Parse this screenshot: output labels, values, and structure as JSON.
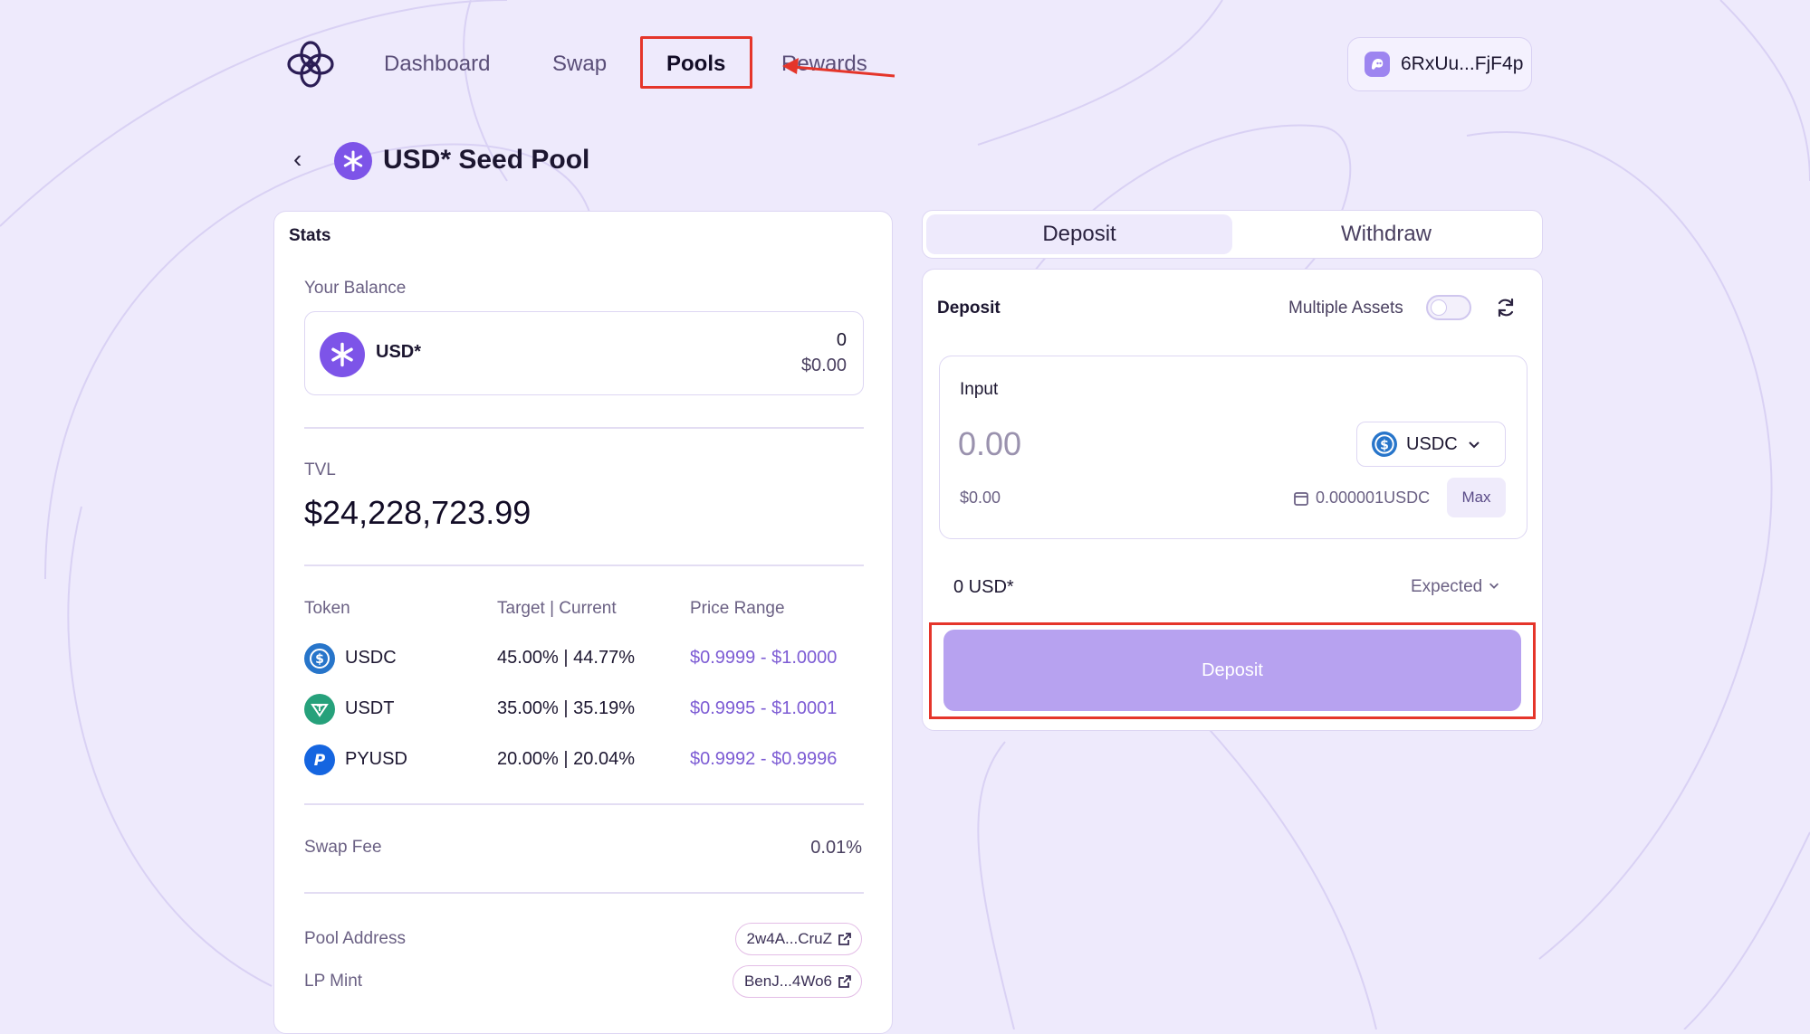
{
  "nav": {
    "items": [
      {
        "label": "Dashboard"
      },
      {
        "label": "Swap"
      },
      {
        "label": "Pools"
      },
      {
        "label": "Rewards"
      }
    ],
    "wallet": "6RxUu...FjF4p"
  },
  "pool": {
    "title": "USD* Seed Pool"
  },
  "stats": {
    "heading": "Stats",
    "balance_label": "Your Balance",
    "balance_token": "USD*",
    "balance_amount": "0",
    "balance_usd": "$0.00",
    "tvl_label": "TVL",
    "tvl_value": "$24,228,723.99",
    "columns": [
      "Token",
      "Target | Current",
      "Price Range"
    ],
    "tokens": [
      {
        "name": "USDC",
        "target_current": "45.00% | 44.77%",
        "range": "$0.9999 - $1.0000",
        "color": "#2775ca"
      },
      {
        "name": "USDT",
        "target_current": "35.00% | 35.19%",
        "range": "$0.9995 - $1.0001",
        "color": "#26a17b"
      },
      {
        "name": "PYUSD",
        "target_current": "20.00% | 20.04%",
        "range": "$0.9992 - $0.9996",
        "color": "#1565e0"
      }
    ],
    "swap_fee_label": "Swap Fee",
    "swap_fee_value": "0.01%",
    "pool_address_label": "Pool Address",
    "pool_address": "2w4A...CruZ",
    "lp_mint_label": "LP Mint",
    "lp_mint": "BenJ...4Wo6"
  },
  "tabs": {
    "deposit": "Deposit",
    "withdraw": "Withdraw"
  },
  "deposit": {
    "heading": "Deposit",
    "multiple_assets_label": "Multiple Assets",
    "input_label": "Input",
    "amount_placeholder": "0.00",
    "asset": "USDC",
    "usd_value": "$0.00",
    "wallet_balance": "0.000001USDC",
    "max_label": "Max",
    "output_amount": "0 USD*",
    "expected_label": "Expected",
    "button_label": "Deposit"
  },
  "colors": {
    "accent": "#7d54e8",
    "button_bg": "#b7a2f0",
    "highlight": "#e5352a"
  }
}
